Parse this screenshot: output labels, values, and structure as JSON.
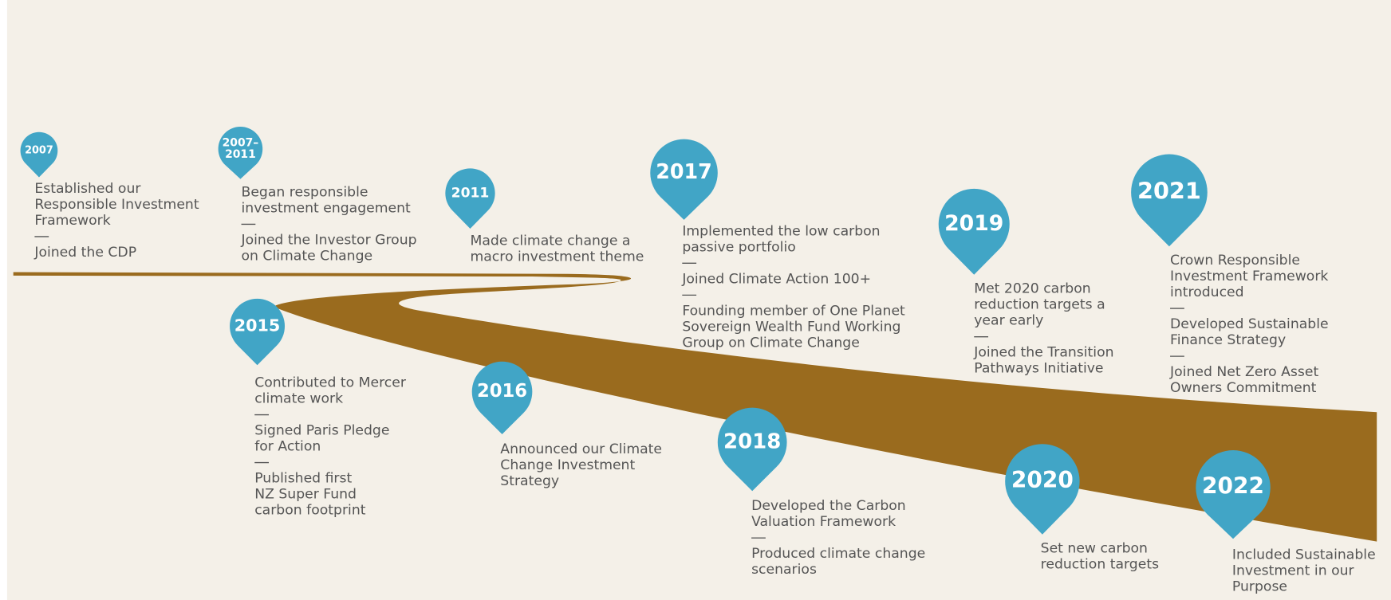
{
  "events": [
    {
      "year": [
        "2007"
      ],
      "items": [
        [
          "Established our",
          "Responsible Investment",
          "Framework"
        ],
        [
          "Joined the CDP"
        ]
      ]
    },
    {
      "year": [
        "2007–",
        "2011"
      ],
      "items": [
        [
          "Began responsible",
          "investment engagement"
        ],
        [
          "Joined the Investor Group",
          "on Climate Change"
        ]
      ]
    },
    {
      "year": [
        "2011"
      ],
      "items": [
        [
          "Made climate change a",
          "macro investment theme"
        ]
      ]
    },
    {
      "year": [
        "2015"
      ],
      "items": [
        [
          "Contributed to Mercer",
          "climate work"
        ],
        [
          "Signed Paris Pledge",
          "for Action"
        ],
        [
          "Published first",
          "NZ Super Fund",
          "carbon footprint"
        ]
      ]
    },
    {
      "year": [
        "2016"
      ],
      "items": [
        [
          "Announced our Climate",
          "Change Investment",
          "Strategy"
        ]
      ]
    },
    {
      "year": [
        "2017"
      ],
      "items": [
        [
          "Implemented the low carbon",
          "passive portfolio"
        ],
        [
          "Joined Climate Action 100+"
        ],
        [
          "Founding member of One Planet",
          "Sovereign Wealth Fund Working",
          "Group on Climate Change"
        ]
      ]
    },
    {
      "year": [
        "2018"
      ],
      "items": [
        [
          "Developed the Carbon",
          "Valuation Framework"
        ],
        [
          "Produced climate change",
          "scenarios"
        ]
      ]
    },
    {
      "year": [
        "2019"
      ],
      "items": [
        [
          "Met 2020 carbon",
          "reduction targets a",
          "year early"
        ],
        [
          "Joined the Transition",
          "Pathways Initiative"
        ]
      ]
    },
    {
      "year": [
        "2020"
      ],
      "items": [
        [
          "Set new carbon",
          "reduction targets"
        ]
      ]
    },
    {
      "year": [
        "2021"
      ],
      "items": [
        [
          "Crown Responsible",
          "Investment Framework",
          "introduced"
        ],
        [
          "Developed Sustainable",
          "Finance Strategy"
        ],
        [
          "Joined Net Zero Asset",
          "Owners Commitment"
        ]
      ]
    },
    {
      "year": [
        "2022"
      ],
      "items": [
        [
          "Included Sustainable",
          "Investment in our",
          "Purpose"
        ]
      ]
    }
  ]
}
